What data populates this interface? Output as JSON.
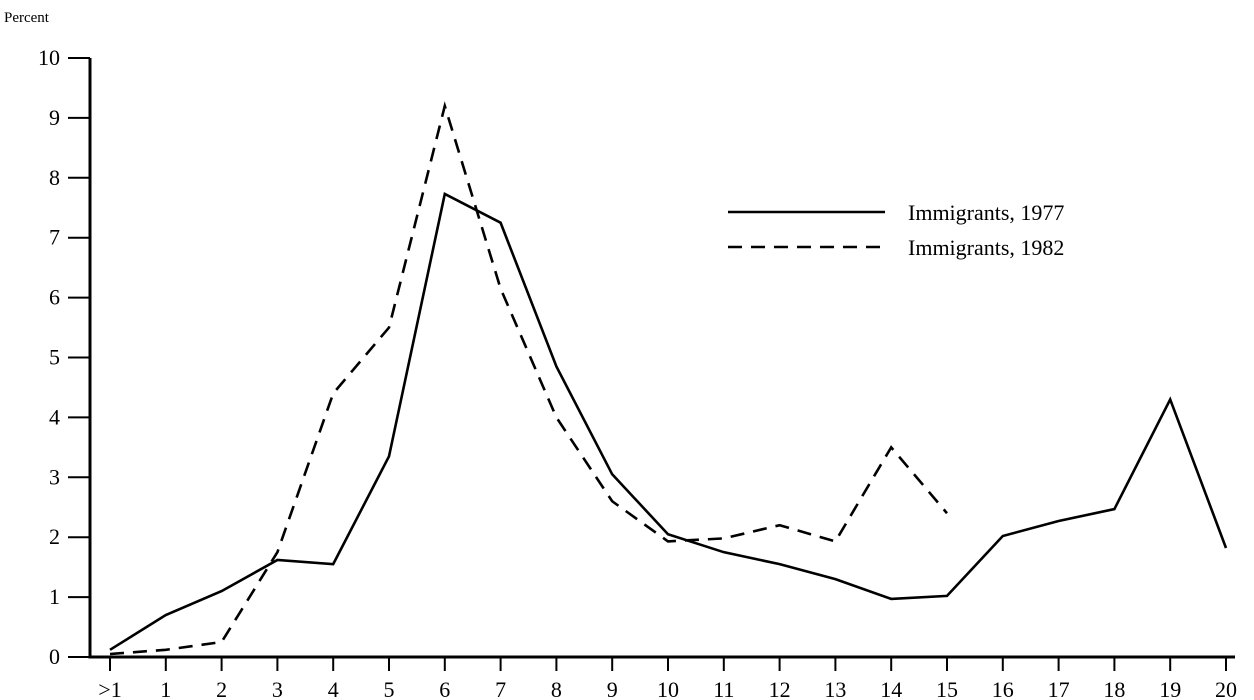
{
  "chart_data": {
    "type": "line",
    "title": "",
    "xlabel": "",
    "ylabel": "Percent",
    "x": [
      ">1",
      "1",
      "2",
      "3",
      "4",
      "5",
      "6",
      "7",
      "8",
      "9",
      "10",
      "11",
      "12",
      "13",
      "14",
      "15",
      "16",
      "17",
      "18",
      "19",
      "20"
    ],
    "ylim": [
      0,
      10
    ],
    "yticks": [
      "0",
      "1",
      "2",
      "3",
      "4",
      "5",
      "6",
      "7",
      "8",
      "9",
      "10"
    ],
    "grid": false,
    "legend_position": "top-right",
    "series": [
      {
        "name": "Immigrants, 1977",
        "style": "solid",
        "color": "#000000",
        "values": [
          0.12,
          0.7,
          1.1,
          1.62,
          1.55,
          3.35,
          7.73,
          7.25,
          4.85,
          3.05,
          2.05,
          1.75,
          1.55,
          1.3,
          0.97,
          1.02,
          2.02,
          2.27,
          2.47,
          4.3,
          1.82
        ]
      },
      {
        "name": "Immigrants, 1982",
        "style": "dashed",
        "color": "#000000",
        "values": [
          0.05,
          0.12,
          0.25,
          1.75,
          4.4,
          5.5,
          9.2,
          6.15,
          4.0,
          2.6,
          1.93,
          1.98,
          2.2,
          1.93,
          3.5,
          2.4,
          null,
          null,
          null,
          null,
          null
        ]
      }
    ]
  }
}
